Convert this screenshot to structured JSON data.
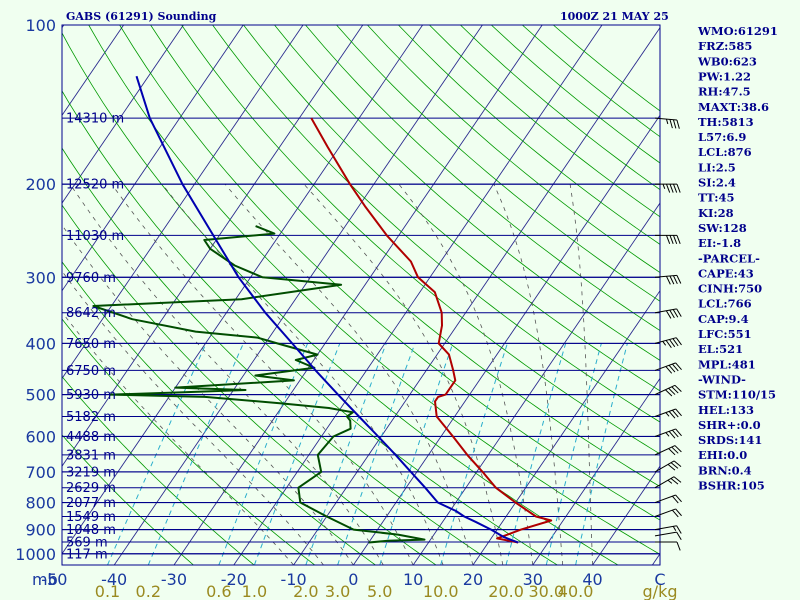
{
  "header": {
    "station": "GABS (61291) Sounding",
    "time": "1000Z 21 MAY 25"
  },
  "chart_data": {
    "type": "line",
    "title": "GABS (61291) Sounding",
    "y_axis_label": "mb",
    "x_axis_unit": "C",
    "mix_axis_unit": "g/kg",
    "pressure_ticks": [
      100,
      200,
      300,
      400,
      500,
      600,
      700,
      800,
      900,
      1000
    ],
    "temperature_ticks": [
      -50,
      -40,
      -30,
      -20,
      -10,
      0,
      10,
      20,
      30,
      40
    ],
    "mixing_ratio_ticks": [
      "0.1",
      "0.2",
      "0.6",
      "1.0",
      "2.0",
      "3.0",
      "5.0",
      "10.0",
      "20.0",
      "30.0",
      "40.0"
    ],
    "ylim": [
      100,
      1050
    ],
    "xlim_at_1000mb": [
      -50,
      50
    ],
    "height_levels": [
      {
        "p": 150,
        "label": "14310 m"
      },
      {
        "p": 200,
        "label": "12520 m"
      },
      {
        "p": 250,
        "label": "11030 m"
      },
      {
        "p": 300,
        "label": "9760 m"
      },
      {
        "p": 350,
        "label": "8642 m"
      },
      {
        "p": 400,
        "label": "7650 m"
      },
      {
        "p": 450,
        "label": "6750 m"
      },
      {
        "p": 500,
        "label": "5930 m"
      },
      {
        "p": 550,
        "label": "5182 m"
      },
      {
        "p": 600,
        "label": "4488 m"
      },
      {
        "p": 650,
        "label": "3831 m"
      },
      {
        "p": 700,
        "label": "3219 m"
      },
      {
        "p": 750,
        "label": "2629 m"
      },
      {
        "p": 800,
        "label": "2077 m"
      },
      {
        "p": 850,
        "label": "1549 m"
      },
      {
        "p": 900,
        "label": "1048 m"
      },
      {
        "p": 950,
        "label": "569 m"
      },
      {
        "p": 1000,
        "label": "117 m"
      }
    ],
    "series": [
      {
        "color": "#b00000",
        "points": [
          [
            952,
            25
          ],
          [
            935,
            21
          ],
          [
            900,
            24
          ],
          [
            865,
            28
          ],
          [
            850,
            25
          ],
          [
            800,
            20
          ],
          [
            750,
            15
          ],
          [
            700,
            11
          ],
          [
            650,
            6.5
          ],
          [
            600,
            2
          ],
          [
            550,
            -3
          ],
          [
            515,
            -5
          ],
          [
            505,
            -5
          ],
          [
            500,
            -4
          ],
          [
            470,
            -4
          ],
          [
            450,
            -5.5
          ],
          [
            420,
            -8
          ],
          [
            400,
            -11
          ],
          [
            370,
            -12.5
          ],
          [
            350,
            -14
          ],
          [
            320,
            -17.5
          ],
          [
            300,
            -22
          ],
          [
            280,
            -25
          ],
          [
            250,
            -32
          ],
          [
            220,
            -39
          ],
          [
            200,
            -44
          ],
          [
            170,
            -52
          ],
          [
            150,
            -58
          ]
        ]
      },
      {
        "color": "#004d00",
        "points": [
          [
            952,
            0
          ],
          [
            945,
            3
          ],
          [
            940,
            9
          ],
          [
            920,
            4
          ],
          [
            900,
            -4
          ],
          [
            850,
            -10
          ],
          [
            800,
            -16
          ],
          [
            750,
            -18
          ],
          [
            700,
            -16
          ],
          [
            650,
            -18.5
          ],
          [
            600,
            -18
          ],
          [
            580,
            -16
          ],
          [
            560,
            -17
          ],
          [
            550,
            -18
          ],
          [
            540,
            -17.5
          ],
          [
            530,
            -22
          ],
          [
            520,
            -30
          ],
          [
            505,
            -44
          ],
          [
            500,
            -60
          ],
          [
            495,
            -48
          ],
          [
            490,
            -38
          ],
          [
            485,
            -50
          ],
          [
            470,
            -31
          ],
          [
            460,
            -38
          ],
          [
            445,
            -29
          ],
          [
            430,
            -33
          ],
          [
            420,
            -30
          ],
          [
            410,
            -34
          ],
          [
            400,
            -38
          ],
          [
            390,
            -42
          ],
          [
            380,
            -53
          ],
          [
            360,
            -65
          ],
          [
            340,
            -73
          ],
          [
            330,
            -49
          ],
          [
            310,
            -34
          ],
          [
            300,
            -48
          ],
          [
            285,
            -54
          ],
          [
            265,
            -60
          ],
          [
            255,
            -62
          ],
          [
            248,
            -51
          ],
          [
            240,
            -55
          ]
        ]
      },
      {
        "color": "#0000b0",
        "points": [
          [
            952,
            25
          ],
          [
            930,
            22
          ],
          [
            900,
            19
          ],
          [
            870,
            15.5
          ],
          [
            850,
            13
          ],
          [
            830,
            11
          ],
          [
            800,
            7
          ],
          [
            750,
            3.2
          ],
          [
            700,
            -1
          ],
          [
            650,
            -5.5
          ],
          [
            600,
            -10.5
          ],
          [
            550,
            -16
          ],
          [
            500,
            -22
          ],
          [
            450,
            -28.5
          ],
          [
            400,
            -35.5
          ],
          [
            350,
            -43.5
          ],
          [
            300,
            -52
          ],
          [
            250,
            -61
          ],
          [
            200,
            -72
          ],
          [
            150,
            -85
          ],
          [
            125,
            -92
          ]
        ]
      }
    ],
    "wind_barbs": [
      {
        "p": 950,
        "dir": 270,
        "spd": 10
      },
      {
        "p": 925,
        "dir": 260,
        "spd": 10
      },
      {
        "p": 900,
        "dir": 260,
        "spd": 15
      },
      {
        "p": 850,
        "dir": 250,
        "spd": 20
      },
      {
        "p": 800,
        "dir": 250,
        "spd": 20
      },
      {
        "p": 750,
        "dir": 240,
        "spd": 25
      },
      {
        "p": 700,
        "dir": 240,
        "spd": 30
      },
      {
        "p": 650,
        "dir": 245,
        "spd": 30
      },
      {
        "p": 600,
        "dir": 250,
        "spd": 35
      },
      {
        "p": 550,
        "dir": 250,
        "spd": 35
      },
      {
        "p": 500,
        "dir": 245,
        "spd": 40
      },
      {
        "p": 450,
        "dir": 250,
        "spd": 40
      },
      {
        "p": 400,
        "dir": 255,
        "spd": 45
      },
      {
        "p": 350,
        "dir": 260,
        "spd": 40
      },
      {
        "p": 300,
        "dir": 265,
        "spd": 40
      },
      {
        "p": 250,
        "dir": 270,
        "spd": 40
      },
      {
        "p": 200,
        "dir": 270,
        "spd": 45
      },
      {
        "p": 150,
        "dir": 275,
        "spd": 35
      }
    ]
  },
  "stats": [
    "WMO:61291",
    "FRZ:585",
    "WB0:623",
    "PW:1.22",
    "RH:47.5",
    "MAXT:38.6",
    "TH:5813",
    "L57:6.9",
    "LCL:876",
    "LI:2.5",
    "SI:2.4",
    "TT:45",
    "KI:28",
    "SW:128",
    "EI:-1.8",
    "-PARCEL-",
    "CAPE:43",
    "CINH:750",
    "LCL:766",
    "CAP:9.4",
    "LFC:551",
    "EL:521",
    "MPL:481",
    "-WIND-",
    "STM:110/15",
    "HEL:133",
    "SHR+:0.0",
    "SRDS:141",
    "EHI:0.0",
    "BRN:0.4",
    "BSHR:105"
  ],
  "colors": {
    "background": "#f0fff0",
    "isobar": "#00008b",
    "isotherm": "#2d2d8f",
    "dry_adiabat": "#009900",
    "moist_adiabat": "#555555",
    "mixing_ratio": "#2aaecc",
    "temperature": "#b00000",
    "dewpoint": "#004d00",
    "parcel": "#0000b0"
  }
}
